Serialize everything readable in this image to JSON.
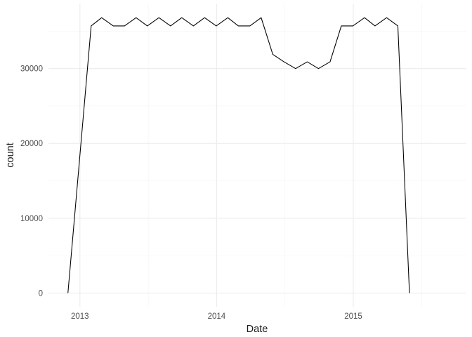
{
  "chart_data": {
    "type": "line",
    "title": "",
    "xlabel": "Date",
    "ylabel": "count",
    "x_tick_labels": [
      "2013",
      "2014",
      "2015"
    ],
    "y_tick_labels": [
      "0",
      "10000",
      "20000",
      "30000"
    ],
    "x_ticks": [
      "2013-01-01",
      "2014-01-01",
      "2015-01-01"
    ],
    "y_ticks": [
      0,
      10000,
      20000,
      30000
    ],
    "xlim": [
      "2012-10-09",
      "2015-10-30"
    ],
    "ylim": [
      -1840,
      38600
    ],
    "grid": true,
    "legend": "none",
    "series": [
      {
        "color": "#000000",
        "points": [
          {
            "x": "2012-11-30",
            "y": 0
          },
          {
            "x": "2013-01-31",
            "y": 35700
          },
          {
            "x": "2013-02-28",
            "y": 36800
          },
          {
            "x": "2013-03-31",
            "y": 35700
          },
          {
            "x": "2013-04-30",
            "y": 35700
          },
          {
            "x": "2013-05-31",
            "y": 36800
          },
          {
            "x": "2013-06-30",
            "y": 35700
          },
          {
            "x": "2013-07-31",
            "y": 36800
          },
          {
            "x": "2013-08-31",
            "y": 35700
          },
          {
            "x": "2013-09-30",
            "y": 36800
          },
          {
            "x": "2013-10-31",
            "y": 35700
          },
          {
            "x": "2013-11-30",
            "y": 36800
          },
          {
            "x": "2013-12-31",
            "y": 35700
          },
          {
            "x": "2014-01-31",
            "y": 36800
          },
          {
            "x": "2014-02-28",
            "y": 35700
          },
          {
            "x": "2014-03-31",
            "y": 35700
          },
          {
            "x": "2014-04-30",
            "y": 36800
          },
          {
            "x": "2014-05-31",
            "y": 31900
          },
          {
            "x": "2014-06-30",
            "y": 30900
          },
          {
            "x": "2014-07-31",
            "y": 30000
          },
          {
            "x": "2014-08-31",
            "y": 30900
          },
          {
            "x": "2014-09-30",
            "y": 30000
          },
          {
            "x": "2014-10-31",
            "y": 30900
          },
          {
            "x": "2014-11-30",
            "y": 35700
          },
          {
            "x": "2014-12-31",
            "y": 35700
          },
          {
            "x": "2015-01-31",
            "y": 36800
          },
          {
            "x": "2015-02-28",
            "y": 35700
          },
          {
            "x": "2015-03-31",
            "y": 36800
          },
          {
            "x": "2015-04-30",
            "y": 35700
          },
          {
            "x": "2015-05-31",
            "y": 0
          }
        ]
      }
    ]
  }
}
